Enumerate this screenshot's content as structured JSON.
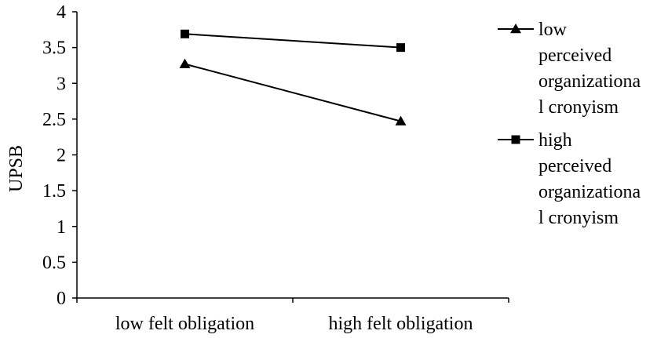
{
  "chart_data": {
    "type": "line",
    "title": "",
    "xlabel": "",
    "ylabel": "UPSB",
    "ylim": [
      0,
      4
    ],
    "ytick_step": 0.5,
    "y_ticks": [
      "0",
      "0.5",
      "1",
      "1.5",
      "2",
      "2.5",
      "3",
      "3.5",
      "4"
    ],
    "categories": [
      "low felt obligation",
      "high felt obligation"
    ],
    "grid": false,
    "legend_position": "right",
    "series": [
      {
        "name": "low perceived organizational cronyism",
        "legend_lines": [
          "low",
          "perceived",
          "organizationa",
          "l cronyism"
        ],
        "marker": "triangle",
        "color": "#000000",
        "values": [
          3.27,
          2.47
        ]
      },
      {
        "name": "high perceived organizational cronyism",
        "legend_lines": [
          "high",
          "perceived",
          "organizationa",
          "l cronyism"
        ],
        "marker": "square",
        "color": "#000000",
        "values": [
          3.69,
          3.5
        ]
      }
    ]
  }
}
